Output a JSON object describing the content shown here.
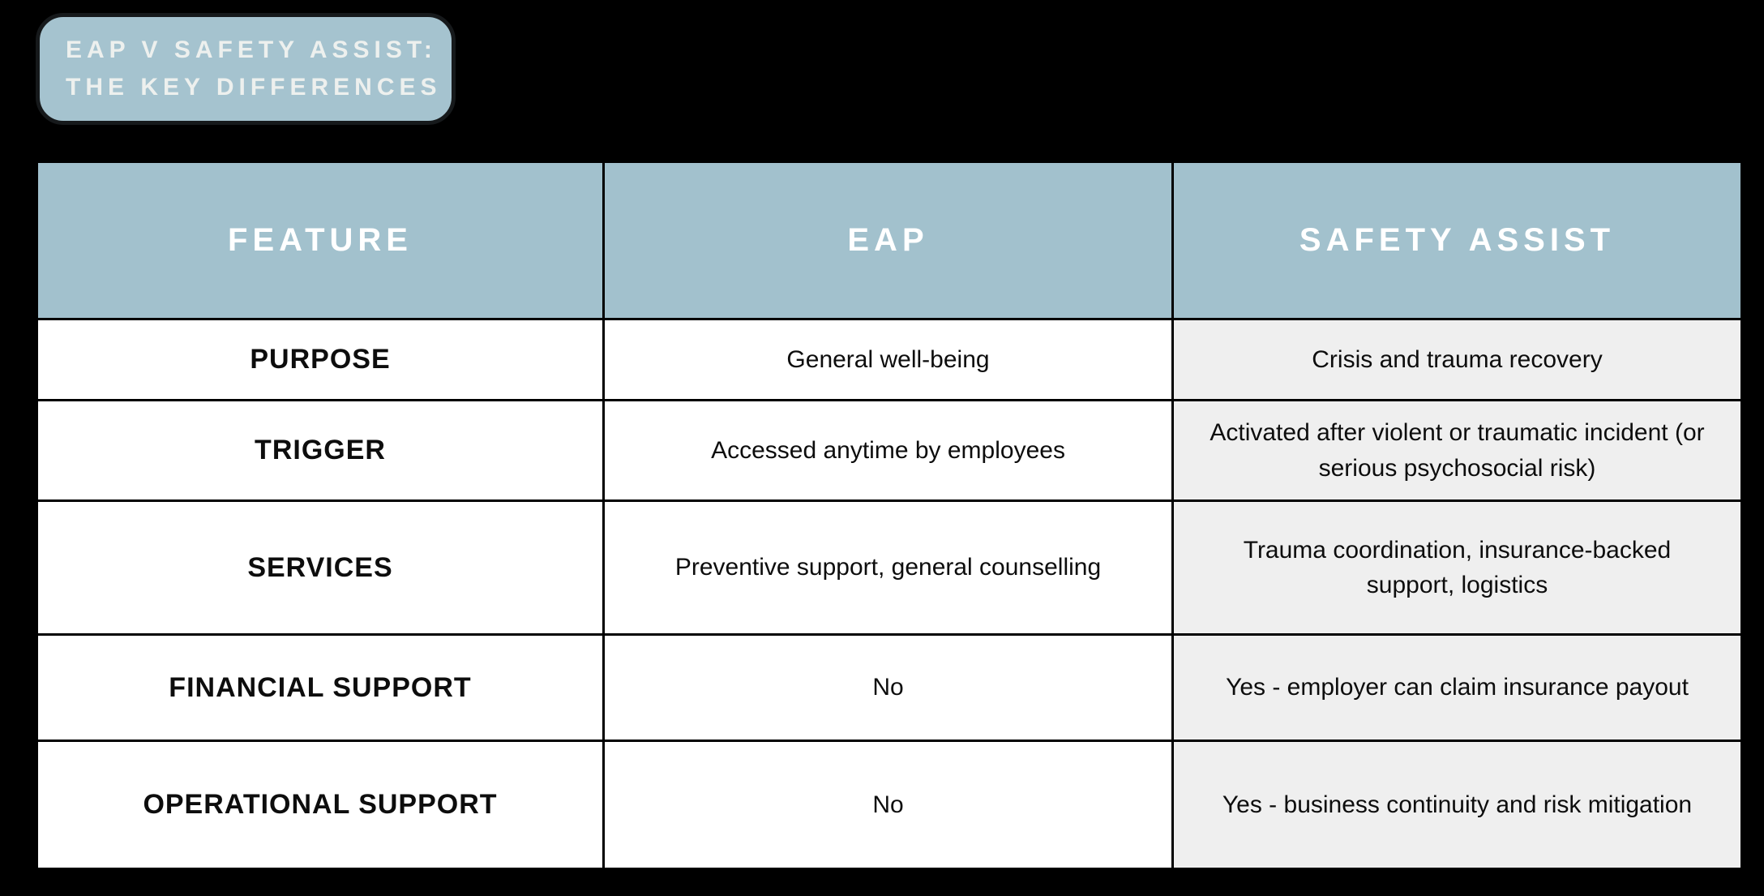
{
  "title_badge": {
    "lines": [
      "EAP V SAFETY ASSIST:",
      "THE KEY DIFFERENCES"
    ]
  },
  "table": {
    "header": {
      "columns": [
        "FEATURE",
        "EAP",
        "SAFETY ASSIST"
      ]
    },
    "rows": [
      {
        "feature": "PURPOSE",
        "eap": "General well-being",
        "safety_assist": "Crisis and trauma recovery"
      },
      {
        "feature": "TRIGGER",
        "eap": "Accessed anytime by employees",
        "safety_assist": "Activated after violent or traumatic incident (or serious psychosocial risk)"
      },
      {
        "feature": "SERVICES",
        "eap": "Preventive support, general counselling",
        "safety_assist": "Trauma coordination, insurance-backed support, logistics"
      },
      {
        "feature": "FINANCIAL SUPPORT",
        "eap": "No",
        "safety_assist": "Yes - employer can claim insurance payout"
      },
      {
        "feature": "OPERATIONAL SUPPORT",
        "eap": "No",
        "safety_assist": "Yes - business continuity and risk mitigation"
      }
    ]
  },
  "colors": {
    "page_bg": "#000000",
    "badge_bg": "#a5c3cf",
    "badge_border": "#16191b",
    "badge_text": "#edf0ee",
    "header_bg": "#a2c1cd",
    "header_text": "#ffffff",
    "cell_bg": "#ffffff",
    "highlight_cell_bg": "#efefef",
    "grid": "#000000",
    "body_text": "#0d0d0d"
  }
}
